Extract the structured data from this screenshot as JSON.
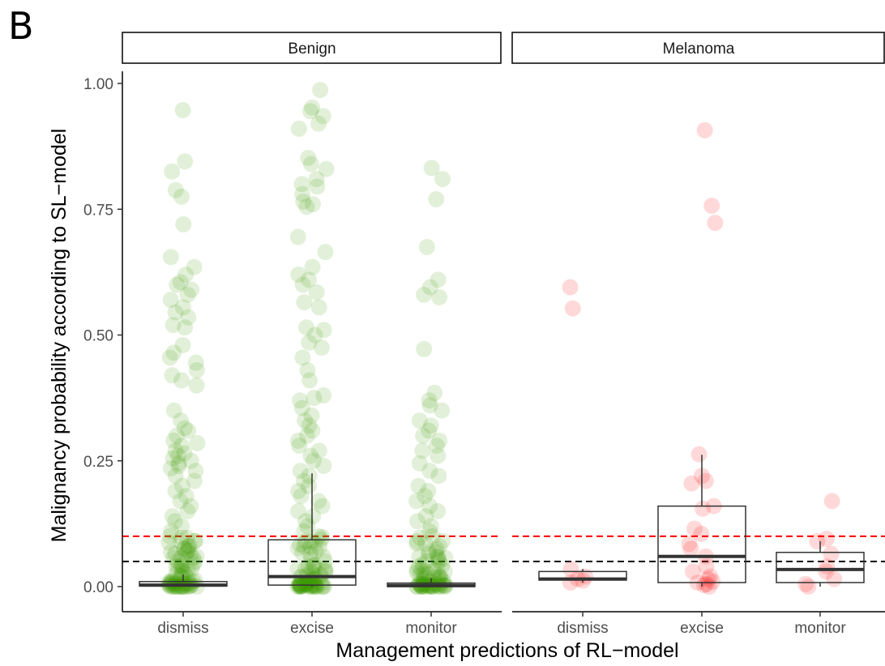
{
  "panel_label": "B",
  "chart_data": {
    "type": "scatter",
    "subtype": "jittered points with box plots, faceted",
    "xlabel": "Management predictions of RL−model",
    "ylabel": "Malignancy probability according to SL−model",
    "categories": [
      "dismiss",
      "excise",
      "monitor"
    ],
    "ylim": [
      0,
      1
    ],
    "yticks": [
      "0.00",
      "0.25",
      "0.50",
      "0.75",
      "1.00"
    ],
    "ytick_values": [
      0,
      0.25,
      0.5,
      0.75,
      1.0
    ],
    "grid": false,
    "reference_lines": [
      {
        "y": 0.05,
        "color": "#000000",
        "style": "dashed"
      },
      {
        "y": 0.1,
        "color": "#ff0000",
        "style": "dashed"
      }
    ],
    "facets": [
      {
        "name": "Benign",
        "point_color": "#3a9c00",
        "boxes": [
          {
            "category": "dismiss",
            "q1": 0.001,
            "median": 0.003,
            "q3": 0.01,
            "whisker_low": 0.0,
            "whisker_high": 0.024
          },
          {
            "category": "excise",
            "q1": 0.003,
            "median": 0.02,
            "q3": 0.093,
            "whisker_low": 0.0,
            "whisker_high": 0.225
          },
          {
            "category": "monitor",
            "q1": 0.0,
            "median": 0.002,
            "q3": 0.007,
            "whisker_low": 0.0,
            "whisker_high": 0.017
          }
        ],
        "points": {
          "dismiss": [
            0.947,
            0.845,
            0.825,
            0.788,
            0.775,
            0.72,
            0.655,
            0.635,
            0.62,
            0.605,
            0.6,
            0.59,
            0.58,
            0.57,
            0.555,
            0.545,
            0.535,
            0.52,
            0.515,
            0.48,
            0.465,
            0.455,
            0.445,
            0.43,
            0.42,
            0.41,
            0.4,
            0.35,
            0.33,
            0.315,
            0.31,
            0.3,
            0.29,
            0.285,
            0.28,
            0.27,
            0.265,
            0.26,
            0.255,
            0.25,
            0.245,
            0.24,
            0.235,
            0.23,
            0.22,
            0.21,
            0.2,
            0.19,
            0.18,
            0.17,
            0.16,
            0.15,
            0.14,
            0.13,
            0.12,
            0.11,
            0.1,
            0.09,
            0.08,
            0.07,
            0.06,
            0.05,
            0.04,
            0.03,
            0.02,
            0.01,
            0.0
          ],
          "excise": [
            0.987,
            0.952,
            0.945,
            0.935,
            0.92,
            0.91,
            0.852,
            0.84,
            0.83,
            0.81,
            0.8,
            0.795,
            0.78,
            0.765,
            0.76,
            0.755,
            0.695,
            0.665,
            0.635,
            0.62,
            0.61,
            0.6,
            0.585,
            0.565,
            0.555,
            0.515,
            0.51,
            0.5,
            0.485,
            0.475,
            0.455,
            0.43,
            0.41,
            0.38,
            0.375,
            0.37,
            0.355,
            0.34,
            0.33,
            0.32,
            0.31,
            0.3,
            0.29,
            0.28,
            0.27,
            0.26,
            0.25,
            0.24,
            0.23,
            0.22,
            0.21,
            0.2,
            0.19,
            0.18,
            0.17,
            0.16,
            0.15,
            0.14,
            0.13,
            0.12,
            0.11,
            0.1,
            0.09,
            0.08,
            0.07,
            0.06,
            0.05,
            0.04,
            0.03,
            0.02,
            0.01,
            0.0
          ],
          "monitor": [
            0.832,
            0.81,
            0.77,
            0.675,
            0.61,
            0.595,
            0.58,
            0.575,
            0.472,
            0.385,
            0.37,
            0.36,
            0.35,
            0.33,
            0.32,
            0.31,
            0.3,
            0.29,
            0.28,
            0.27,
            0.26,
            0.245,
            0.23,
            0.22,
            0.2,
            0.19,
            0.18,
            0.17,
            0.16,
            0.15,
            0.14,
            0.13,
            0.12,
            0.11,
            0.1,
            0.09,
            0.08,
            0.07,
            0.06,
            0.05,
            0.04,
            0.03,
            0.02,
            0.01,
            0.0
          ]
        }
      },
      {
        "name": "Melanoma",
        "point_color": "#ff0000",
        "boxes": [
          {
            "category": "dismiss",
            "q1": 0.013,
            "median": 0.015,
            "q3": 0.03,
            "whisker_low": 0.008,
            "whisker_high": 0.035
          },
          {
            "category": "excise",
            "q1": 0.008,
            "median": 0.06,
            "q3": 0.16,
            "whisker_low": 0.0,
            "whisker_high": 0.262
          },
          {
            "category": "monitor",
            "q1": 0.008,
            "median": 0.034,
            "q3": 0.068,
            "whisker_low": 0.0,
            "whisker_high": 0.09
          }
        ],
        "points": {
          "dismiss": [
            0.595,
            0.553,
            0.035,
            0.02,
            0.015,
            0.012,
            0.008
          ],
          "excise": [
            0.907,
            0.757,
            0.723,
            0.263,
            0.22,
            0.21,
            0.205,
            0.16,
            0.155,
            0.115,
            0.105,
            0.085,
            0.075,
            0.06,
            0.04,
            0.03,
            0.02,
            0.015,
            0.01,
            0.008,
            0.005,
            0.003,
            0.0
          ],
          "monitor": [
            0.17,
            0.095,
            0.09,
            0.065,
            0.04,
            0.03,
            0.015,
            0.005,
            0.0
          ]
        }
      }
    ]
  }
}
